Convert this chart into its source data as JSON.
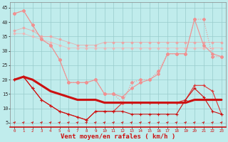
{
  "x": [
    0,
    1,
    2,
    3,
    4,
    5,
    6,
    7,
    8,
    9,
    10,
    11,
    12,
    13,
    14,
    15,
    16,
    17,
    18,
    19,
    20,
    21,
    22,
    23
  ],
  "line_dotted_pink": [
    43,
    44,
    39,
    34,
    32,
    27,
    19,
    19,
    19,
    20,
    15,
    15,
    12,
    19,
    20,
    20,
    23,
    29,
    29,
    29,
    41,
    41,
    28,
    28
  ],
  "line_solid_pink1": [
    43,
    44,
    39,
    34,
    32,
    27,
    19,
    19,
    19,
    20,
    15,
    15,
    14,
    17,
    19,
    20,
    22,
    29,
    29,
    29,
    41,
    32,
    29,
    28
  ],
  "line_solid_pink2": [
    37,
    38,
    37,
    35,
    35,
    34,
    33,
    32,
    32,
    32,
    33,
    33,
    33,
    33,
    33,
    33,
    33,
    33,
    33,
    33,
    33,
    33,
    33,
    33
  ],
  "line_solid_pink3": [
    36,
    36,
    35,
    34,
    33,
    32,
    31,
    31,
    31,
    31,
    31,
    31,
    31,
    31,
    31,
    31,
    31,
    31,
    31,
    31,
    31,
    31,
    31,
    31
  ],
  "line_dark_thick": [
    20,
    21,
    20,
    18,
    16,
    15,
    14,
    13,
    13,
    13,
    12,
    12,
    12,
    12,
    12,
    12,
    12,
    12,
    12,
    12,
    13,
    13,
    13,
    13
  ],
  "line_red_jagged1": [
    20,
    21,
    17,
    13,
    11,
    9,
    8,
    7,
    6,
    9,
    9,
    9,
    12,
    12,
    12,
    12,
    12,
    12,
    12,
    13,
    18,
    18,
    16,
    8
  ],
  "line_red_jagged2": [
    20,
    21,
    17,
    13,
    11,
    9,
    8,
    7,
    6,
    9,
    9,
    9,
    9,
    8,
    8,
    8,
    8,
    8,
    8,
    13,
    17,
    14,
    9,
    8
  ],
  "color_light_pink": "#f09090",
  "color_mid_pink": "#e87878",
  "color_dark_red": "#cc1111",
  "bg_color": "#c0ecec",
  "grid_color": "#98cccc",
  "xlabel": "Vent moyen/en rafales ( km/h )",
  "yticks": [
    5,
    10,
    15,
    20,
    25,
    30,
    35,
    40,
    45
  ],
  "ylim": [
    3.5,
    47
  ],
  "xlim": [
    -0.5,
    23.5
  ]
}
